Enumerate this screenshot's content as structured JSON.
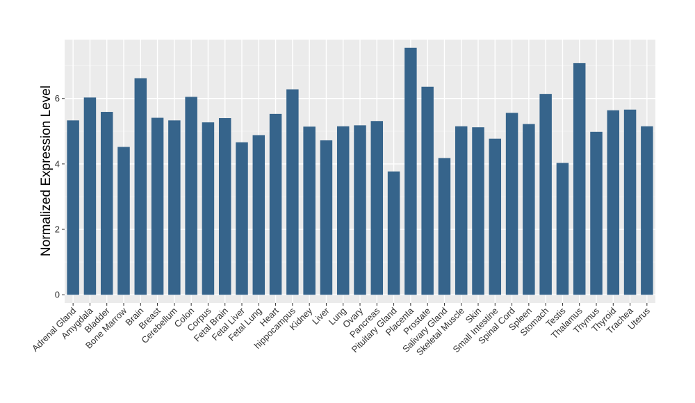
{
  "chart_data": {
    "type": "bar",
    "title": "",
    "xlabel": "",
    "ylabel": "Normalized Expression Level",
    "ylim": [
      -0.25,
      7.8
    ],
    "yticks": [
      0,
      2,
      4,
      6
    ],
    "grid": true,
    "legend": "none",
    "bar_color": "#36648b",
    "panel_color": "#ebebeb",
    "categories": [
      "Adrenal Gland",
      "Amygdala",
      "Bladder",
      "Bone Marrow",
      "Brain",
      "Breast",
      "Cerebellum",
      "Colon",
      "Corpus",
      "Fetal Brain",
      "Fetal Liver",
      "Fetal Lung",
      "Heart",
      "hippocampus",
      "Kidney",
      "Liver",
      "Lung",
      "Ovary",
      "Pancreas",
      "Pituitary Gland",
      "Placenta",
      "Prostate",
      "Salivary Gland",
      "Skeletal Muscle",
      "Skin",
      "Small Intestine",
      "Spinal Cord",
      "Spleen",
      "Stomach",
      "Testis",
      "Thalamus",
      "Thymus",
      "Thyroid",
      "Trachea",
      "Uterus"
    ],
    "values": [
      5.33,
      6.03,
      5.59,
      4.52,
      6.62,
      5.41,
      5.33,
      6.05,
      5.27,
      5.4,
      4.66,
      4.88,
      5.53,
      6.28,
      5.14,
      4.72,
      5.15,
      5.18,
      5.31,
      3.77,
      7.55,
      6.36,
      4.18,
      5.15,
      5.12,
      4.77,
      5.56,
      5.22,
      6.14,
      4.03,
      7.08,
      4.98,
      5.64,
      5.66,
      5.15
    ]
  }
}
